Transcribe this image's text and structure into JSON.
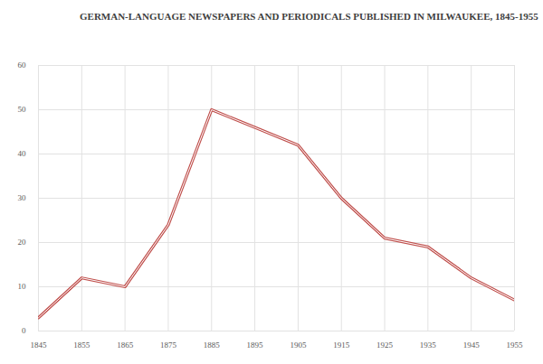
{
  "chart_data": {
    "type": "line",
    "title": "GERMAN-LANGUAGE NEWSPAPERS AND PERIODICALS PUBLISHED IN MILWAUKEE, 1845-1955",
    "x": [
      1845,
      1855,
      1865,
      1875,
      1885,
      1895,
      1905,
      1915,
      1925,
      1935,
      1945,
      1955
    ],
    "values": [
      3,
      12,
      10,
      24,
      50,
      46,
      42,
      30,
      21,
      19,
      12,
      7
    ],
    "color": "#c0504d",
    "xlim": [
      1845,
      1955
    ],
    "xticks": [
      1845,
      1855,
      1865,
      1875,
      1885,
      1895,
      1905,
      1915,
      1925,
      1935,
      1945,
      1955
    ],
    "ylim": [
      0,
      60
    ],
    "yticks": [
      0,
      10,
      20,
      30,
      40,
      50,
      60
    ],
    "grid": true
  }
}
